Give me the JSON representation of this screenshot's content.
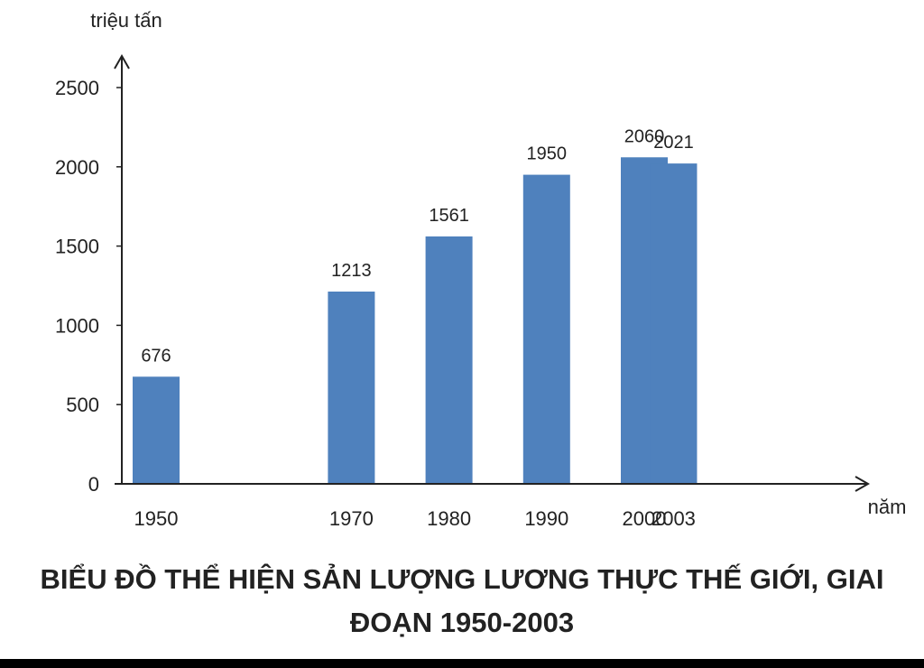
{
  "chart_data": {
    "type": "bar",
    "title": "BIỂU ĐỒ THỂ HIỆN SẢN LƯỢNG LƯƠNG THỰC THẾ GIỚI, GIAI ĐOẠN 1950-2003",
    "xlabel": "năm",
    "ylabel": "triệu tấn",
    "categories": [
      "1950",
      "1970",
      "1980",
      "1990",
      "2000",
      "2003"
    ],
    "x": [
      1950,
      1970,
      1980,
      1990,
      2000,
      2003
    ],
    "values": [
      676,
      1213,
      1561,
      1950,
      2060,
      2021
    ],
    "data_labels": [
      "676",
      "1213",
      "1561",
      "1950",
      "2060",
      "2021"
    ],
    "yticks": [
      0,
      500,
      1000,
      1500,
      2000,
      2500
    ],
    "ylim": [
      0,
      2500
    ],
    "grid": false,
    "legend": "none",
    "bar_color": "#4f81bd"
  }
}
